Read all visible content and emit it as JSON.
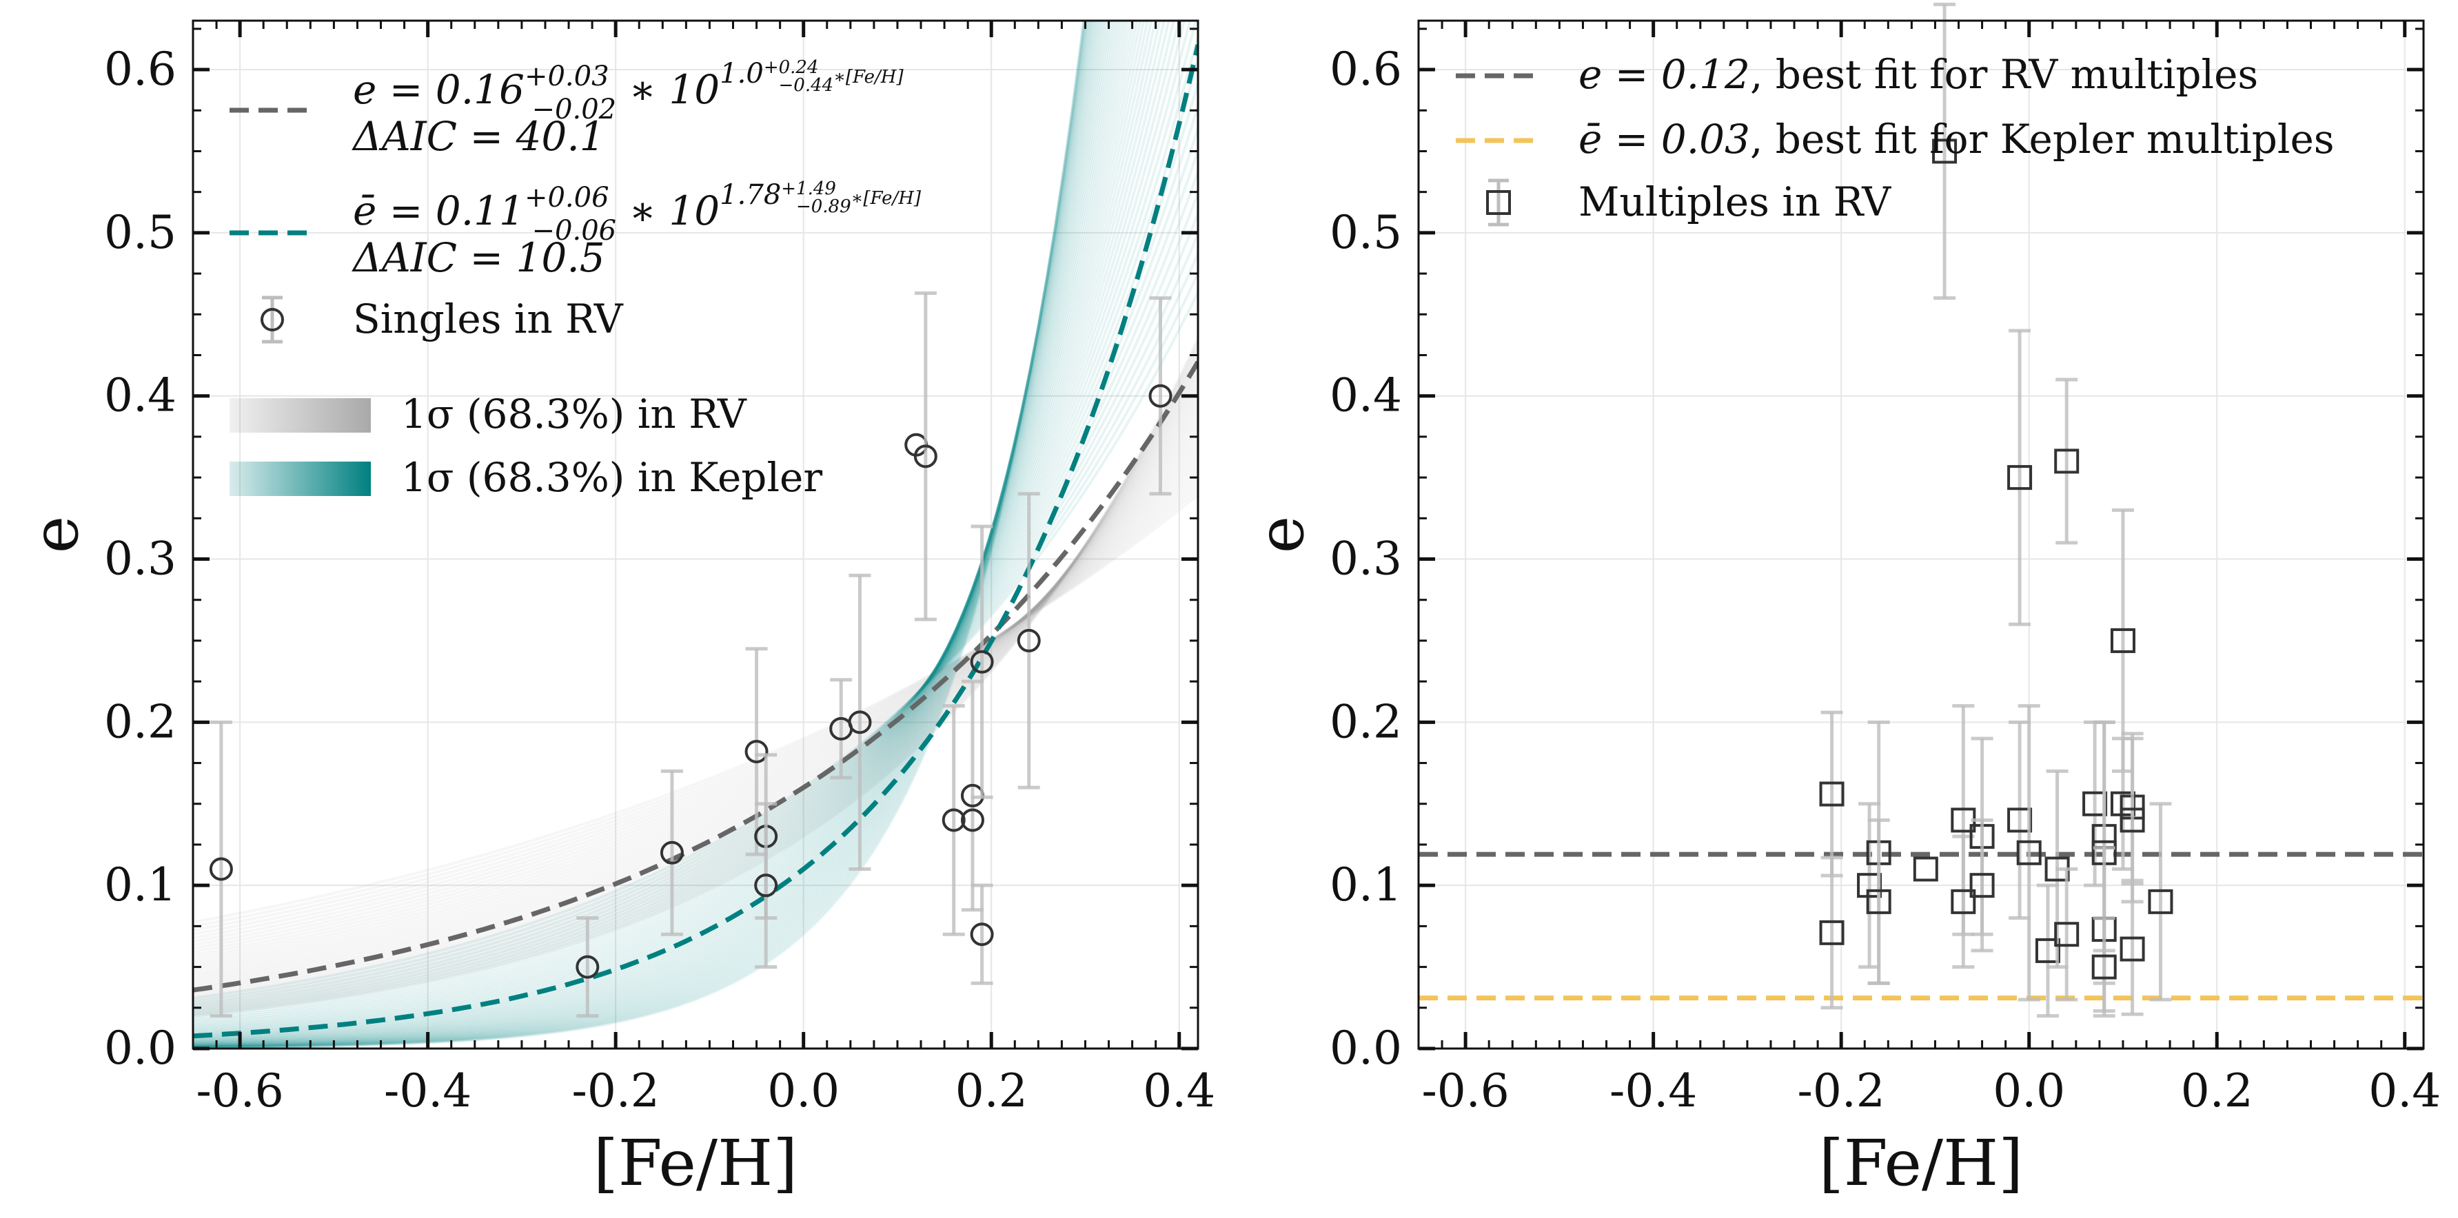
{
  "chart_data": [
    {
      "panel": "left",
      "type": "scatter",
      "xlabel": "[Fe/H]",
      "ylabel": "e",
      "xlim": [
        -0.65,
        0.42
      ],
      "ylim": [
        0.0,
        0.63
      ],
      "xticks": [
        -0.6,
        -0.4,
        -0.2,
        0.0,
        0.2,
        0.4
      ],
      "xtick_labels": [
        "-0.6",
        "-0.4",
        "-0.2",
        "0.0",
        "0.2",
        "0.4"
      ],
      "yticks": [
        0.0,
        0.1,
        0.2,
        0.3,
        0.4,
        0.5,
        0.6
      ],
      "ytick_labels": [
        "0.0",
        "0.1",
        "0.2",
        "0.3",
        "0.4",
        "0.5",
        "0.6"
      ],
      "grid": true,
      "legend_position": "top-left",
      "fits": [
        {
          "name": "RV fit",
          "color": "#666666",
          "style": "dashed",
          "A": 0.16,
          "B": 1.0,
          "legend_line1": "e = 0.16",
          "A_sup": "+0.03",
          "A_sub": "−0.02",
          "times": " ∗ 10",
          "exp_base": "1.0",
          "exp_sup": "+0.24",
          "exp_sub": "−0.44",
          "exp_tail": "∗[Fe/H]",
          "legend_line2": "ΔAIC = 40.1"
        },
        {
          "name": "Kepler fit",
          "color": "#008080",
          "style": "dashed",
          "A": 0.11,
          "B": 1.78,
          "legend_line1": "ē = 0.11",
          "A_sup": "+0.06",
          "A_sub": "−0.06",
          "times": " ∗ 10",
          "exp_base": "1.78",
          "exp_sup": "+1.49",
          "exp_sub": "−0.89",
          "exp_tail": "∗[Fe/H]",
          "legend_line2": "ΔAIC = 10.5"
        }
      ],
      "scatter_label": "Singles in RV",
      "band_labels": [
        "1σ (68.3%) in RV",
        "1σ (68.3%) in Kepler"
      ],
      "band_colors": [
        "#9a9a9a",
        "#008080"
      ],
      "points": [
        {
          "x": -0.62,
          "y": 0.11,
          "err": 0.09
        },
        {
          "x": -0.23,
          "y": 0.05,
          "err": 0.03
        },
        {
          "x": -0.14,
          "y": 0.12,
          "err": 0.05
        },
        {
          "x": -0.05,
          "y": 0.182,
          "err": 0.063
        },
        {
          "x": -0.04,
          "y": 0.13,
          "err": 0.05
        },
        {
          "x": -0.04,
          "y": 0.1,
          "err": 0.05
        },
        {
          "x": 0.04,
          "y": 0.196,
          "err": 0.03
        },
        {
          "x": 0.06,
          "y": 0.2,
          "err": 0.09
        },
        {
          "x": 0.12,
          "y": 0.37,
          "err": 0.0
        },
        {
          "x": 0.13,
          "y": 0.363,
          "err": 0.1
        },
        {
          "x": 0.16,
          "y": 0.14,
          "err": 0.07
        },
        {
          "x": 0.18,
          "y": 0.155,
          "err": 0.07
        },
        {
          "x": 0.18,
          "y": 0.14,
          "err": 0.0
        },
        {
          "x": 0.19,
          "y": 0.237,
          "err": 0.083
        },
        {
          "x": 0.19,
          "y": 0.07,
          "err": 0.03
        },
        {
          "x": 0.24,
          "y": 0.25,
          "err": 0.09
        },
        {
          "x": 0.38,
          "y": 0.4,
          "err": 0.06
        }
      ]
    },
    {
      "panel": "right",
      "type": "scatter",
      "xlabel": "[Fe/H]",
      "ylabel": "e",
      "xlim": [
        -0.65,
        0.42
      ],
      "ylim": [
        0.0,
        0.63
      ],
      "xticks": [
        -0.6,
        -0.4,
        -0.2,
        0.0,
        0.2,
        0.4
      ],
      "xtick_labels": [
        "-0.6",
        "-0.4",
        "-0.2",
        "0.0",
        "0.2",
        "0.4"
      ],
      "yticks": [
        0.0,
        0.1,
        0.2,
        0.3,
        0.4,
        0.5,
        0.6
      ],
      "ytick_labels": [
        "0.0",
        "0.1",
        "0.2",
        "0.3",
        "0.4",
        "0.5",
        "0.6"
      ],
      "grid": true,
      "legend_position": "top-left",
      "hlines": [
        {
          "y": 0.119,
          "color": "#666666",
          "legend_math": "e = 0.12",
          "legend_text": ", best fit for RV multiples"
        },
        {
          "y": 0.031,
          "color": "#f2c45a",
          "legend_math": "ē = 0.03",
          "legend_text": ", best fit for Kepler multiples"
        }
      ],
      "scatter_label": "Multiples in RV",
      "points": [
        {
          "x": -0.21,
          "y": 0.156,
          "err": 0.05
        },
        {
          "x": -0.21,
          "y": 0.071,
          "err": 0.046
        },
        {
          "x": -0.17,
          "y": 0.1,
          "err": 0.05
        },
        {
          "x": -0.16,
          "y": 0.12,
          "err": 0.08
        },
        {
          "x": -0.16,
          "y": 0.09,
          "err": 0.05
        },
        {
          "x": -0.11,
          "y": 0.11,
          "err": 0.0
        },
        {
          "x": -0.09,
          "y": 0.55,
          "err": 0.09
        },
        {
          "x": -0.07,
          "y": 0.14,
          "err": 0.07
        },
        {
          "x": -0.07,
          "y": 0.09,
          "err": 0.04
        },
        {
          "x": -0.05,
          "y": 0.13,
          "err": 0.06
        },
        {
          "x": -0.05,
          "y": 0.1,
          "err": 0.04
        },
        {
          "x": -0.01,
          "y": 0.35,
          "err": 0.09
        },
        {
          "x": -0.01,
          "y": 0.14,
          "err": 0.06
        },
        {
          "x": 0.0,
          "y": 0.12,
          "err": 0.09
        },
        {
          "x": 0.02,
          "y": 0.06,
          "err": 0.04
        },
        {
          "x": 0.03,
          "y": 0.11,
          "err": 0.06
        },
        {
          "x": 0.04,
          "y": 0.36,
          "err": 0.05
        },
        {
          "x": 0.04,
          "y": 0.07,
          "err": 0.04
        },
        {
          "x": 0.07,
          "y": 0.15,
          "err": 0.05
        },
        {
          "x": 0.08,
          "y": 0.13,
          "err": 0.07
        },
        {
          "x": 0.08,
          "y": 0.12,
          "err": 0.08
        },
        {
          "x": 0.08,
          "y": 0.073,
          "err": 0.05
        },
        {
          "x": 0.08,
          "y": 0.05,
          "err": 0.03
        },
        {
          "x": 0.1,
          "y": 0.25,
          "err": 0.08
        },
        {
          "x": 0.1,
          "y": 0.15,
          "err": 0.04
        },
        {
          "x": 0.11,
          "y": 0.148,
          "err": 0.045
        },
        {
          "x": 0.11,
          "y": 0.14,
          "err": 0.05
        },
        {
          "x": 0.11,
          "y": 0.061,
          "err": 0.04
        },
        {
          "x": 0.14,
          "y": 0.09,
          "err": 0.06
        }
      ]
    }
  ]
}
